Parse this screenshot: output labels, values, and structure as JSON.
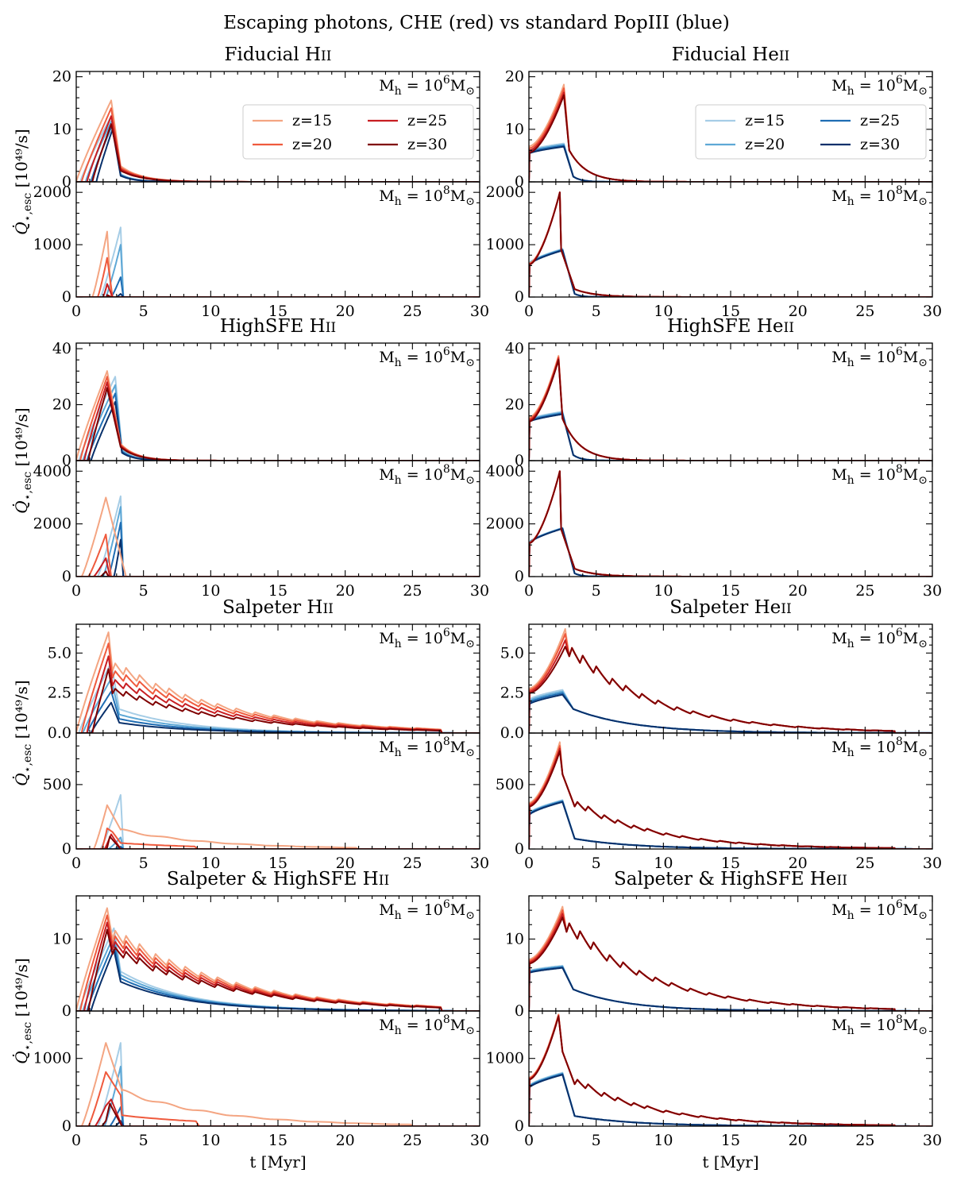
{
  "suptitle": "Escaping photons, CHE (red) vs standard PopIII (blue)",
  "ylabel_unit": "[10⁴⁹/s]",
  "xlabel": "t [Myr]",
  "halo_labels": {
    "low": "6",
    "high": "8"
  },
  "colors": {
    "red": [
      "#f4a582",
      "#ef5a3d",
      "#c81e22",
      "#7f0000"
    ],
    "blue": [
      "#a6cde6",
      "#5ea8d6",
      "#1f6db3",
      "#08306b"
    ]
  },
  "legend": {
    "entries": [
      "z=15",
      "z=20",
      "z=25",
      "z=30"
    ]
  },
  "chart_data": [
    {
      "type": "line",
      "title": "Fiducial HII",
      "title_text": "Fiducial H",
      "ion": "II",
      "xlim": [
        0,
        30
      ],
      "xticks": [
        0,
        5,
        10,
        15,
        20,
        25,
        30
      ],
      "top": {
        "halo": "low",
        "ylim": [
          0,
          21
        ],
        "yticks": [
          0,
          10,
          20
        ],
        "ytick_labels": [
          "0",
          "10",
          "20"
        ],
        "red": {
          "kind": "ramp",
          "start": [
            0.0,
            0.4,
            0.8,
            1.2
          ],
          "peak_t": 2.6,
          "peak": [
            15.5,
            14.0,
            12.5,
            11.0
          ],
          "drop_t": 3.3,
          "drop_to": 3.0,
          "tail_tau": 1.6,
          "end_t": 30
        },
        "blue": {
          "kind": "ramp",
          "start": [
            0.3,
            0.7,
            1.1,
            1.5
          ],
          "peak_t": 2.7,
          "peak": [
            13.0,
            12.0,
            11.0,
            10.0
          ],
          "drop_t": 3.3,
          "drop_to": 1.5,
          "tail_tau": 1.0,
          "end_t": 30
        }
      },
      "bottom": {
        "halo": "high",
        "ylim": [
          0,
          2200
        ],
        "yticks": [
          0,
          1000,
          2000
        ],
        "ytick_labels": [
          "0",
          "1000",
          "2000"
        ],
        "red": {
          "kind": "bump",
          "start": [
            1.2,
            1.6,
            2.0,
            2.3
          ],
          "peak_t": 2.3,
          "peak": [
            1250,
            750,
            250,
            40
          ],
          "end": [
            2.6,
            2.7,
            2.7,
            2.6
          ]
        },
        "blue": {
          "kind": "bump",
          "start": [
            1.8,
            2.2,
            2.6,
            3.0
          ],
          "peak_t": 3.3,
          "peak": [
            1330,
            1000,
            380,
            60
          ],
          "end": [
            3.5,
            3.5,
            3.5,
            3.5
          ]
        }
      }
    },
    {
      "type": "line",
      "title": "Fiducial HeII",
      "title_text": "Fiducial He",
      "ion": "II",
      "xlim": [
        0,
        30
      ],
      "xticks": [
        0,
        5,
        10,
        15,
        20,
        25,
        30
      ],
      "top": {
        "halo": "low",
        "ylim": [
          0,
          21
        ],
        "yticks": [
          0,
          10,
          20
        ],
        "ytick_labels": [
          "0",
          "10",
          "20"
        ],
        "red": {
          "kind": "curve",
          "start_val": [
            6.8,
            6.4,
            6.0,
            5.6
          ],
          "peak_t": 2.6,
          "peak": [
            18.5,
            17.8,
            17.0,
            16.5
          ],
          "drop_t": 3.0,
          "drop_to": 6.0,
          "tail_tau": 1.3,
          "end_t": 30
        },
        "blue": {
          "kind": "plateau",
          "start_val": [
            6.0,
            5.8,
            5.6,
            5.4
          ],
          "peak_t": 2.6,
          "peak": [
            7.3,
            7.1,
            6.9,
            6.7
          ],
          "drop_t": 3.3,
          "drop_to": 1.0,
          "tail_tau": 0.6,
          "end_t": 30
        }
      },
      "bottom": {
        "halo": "high",
        "ylim": [
          0,
          2200
        ],
        "yticks": [
          0,
          1000,
          2000
        ],
        "ytick_labels": [
          "0",
          "1000",
          "2000"
        ],
        "red": {
          "kind": "curve",
          "start_val": [
            650,
            640,
            630,
            620
          ],
          "peak_t": 2.3,
          "peak": [
            2000,
            2000,
            2000,
            2000
          ],
          "drop_t": 2.4,
          "drop_to": 900,
          "knee_t": 3.4,
          "knee_val": 150,
          "tail_tau": 1.5,
          "end_t": 12
        },
        "blue": {
          "kind": "plateau",
          "start_val": [
            650,
            640,
            630,
            620
          ],
          "peak_t": 2.5,
          "peak": [
            920,
            910,
            900,
            890
          ],
          "drop_t": 3.4,
          "drop_to": 60,
          "tail_tau": 0.5,
          "end_t": 6
        }
      }
    },
    {
      "type": "line",
      "title": "HighSFE HII",
      "title_text": "HighSFE H",
      "ion": "II",
      "xlim": [
        0,
        30
      ],
      "xticks": [
        0,
        5,
        10,
        15,
        20,
        25,
        30
      ],
      "top": {
        "halo": "low",
        "ylim": [
          0,
          42
        ],
        "yticks": [
          0,
          20,
          40
        ],
        "ytick_labels": [
          "0",
          "20",
          "40"
        ],
        "red": {
          "kind": "ramp",
          "start": [
            0.0,
            0.3,
            0.6,
            0.9
          ],
          "peak_t": 2.3,
          "peak": [
            32,
            30,
            28,
            26
          ],
          "drop_t": 3.3,
          "drop_to": 6.0,
          "tail_tau": 1.2,
          "end_t": 30
        },
        "blue": {
          "kind": "ramp",
          "start": [
            0.2,
            0.5,
            0.8,
            1.1
          ],
          "peak_t": 2.9,
          "peak": [
            30,
            27,
            24,
            21
          ],
          "drop_t": 3.4,
          "drop_to": 4.0,
          "tail_tau": 0.9,
          "end_t": 30
        }
      },
      "bottom": {
        "halo": "high",
        "ylim": [
          0,
          4400
        ],
        "yticks": [
          0,
          2000,
          4000
        ],
        "ytick_labels": [
          "0",
          "2000",
          "4000"
        ],
        "red": {
          "kind": "bump",
          "start": [
            0.4,
            0.9,
            1.3,
            1.8
          ],
          "peak_t": 2.2,
          "peak": [
            3000,
            1600,
            700,
            200
          ],
          "end": [
            3.7,
            2.6,
            2.5,
            2.4
          ]
        },
        "blue": {
          "kind": "bump",
          "start": [
            1.6,
            2.0,
            2.4,
            2.8
          ],
          "peak_t": 3.3,
          "peak": [
            3050,
            2650,
            2050,
            1400
          ],
          "end": [
            3.5,
            3.5,
            3.5,
            3.5
          ]
        }
      }
    },
    {
      "type": "line",
      "title": "HighSFE HeII",
      "title_text": "HighSFE He",
      "ion": "II",
      "xlim": [
        0,
        30
      ],
      "xticks": [
        0,
        5,
        10,
        15,
        20,
        25,
        30
      ],
      "top": {
        "halo": "low",
        "ylim": [
          0,
          42
        ],
        "yticks": [
          0,
          20,
          40
        ],
        "ytick_labels": [
          "0",
          "20",
          "40"
        ],
        "red": {
          "kind": "curve",
          "start_val": [
            15.5,
            15.0,
            14.5,
            14.0
          ],
          "peak_t": 2.2,
          "peak": [
            37.5,
            37.0,
            36.5,
            36.0
          ],
          "drop_t": 2.5,
          "drop_to": 15.0,
          "tail_tau": 1.3,
          "end_t": 30
        },
        "blue": {
          "kind": "plateau",
          "start_val": [
            14.8,
            14.5,
            14.2,
            13.9
          ],
          "peak_t": 2.5,
          "peak": [
            17.5,
            17.2,
            16.9,
            16.6
          ],
          "drop_t": 3.3,
          "drop_to": 2.0,
          "tail_tau": 0.6,
          "end_t": 30
        }
      },
      "bottom": {
        "halo": "high",
        "ylim": [
          0,
          4400
        ],
        "yticks": [
          0,
          2000,
          4000
        ],
        "ytick_labels": [
          "0",
          "2000",
          "4000"
        ],
        "red": {
          "kind": "curve",
          "start_val": [
            1300,
            1290,
            1280,
            1270
          ],
          "peak_t": 2.3,
          "peak": [
            4000,
            4000,
            4000,
            4000
          ],
          "drop_t": 2.4,
          "drop_to": 1800,
          "knee_t": 3.4,
          "knee_val": 300,
          "tail_tau": 1.5,
          "end_t": 12
        },
        "blue": {
          "kind": "plateau",
          "start_val": [
            1300,
            1290,
            1280,
            1270
          ],
          "peak_t": 2.5,
          "peak": [
            1850,
            1840,
            1830,
            1820
          ],
          "drop_t": 3.4,
          "drop_to": 120,
          "tail_tau": 0.5,
          "end_t": 6
        }
      }
    },
    {
      "type": "line",
      "title": "Salpeter HII",
      "title_text": "Salpeter H",
      "ion": "II",
      "xlim": [
        0,
        30
      ],
      "xticks": [
        0,
        5,
        10,
        15,
        20,
        25,
        30
      ],
      "top": {
        "halo": "low",
        "ylim": [
          0,
          6.8
        ],
        "yticks": [
          0,
          2.5,
          5
        ],
        "ytick_labels": [
          "0.0",
          "2.5",
          "5.0"
        ],
        "red": {
          "kind": "ramp",
          "start": [
            0.0,
            0.4,
            0.8,
            1.2
          ],
          "peak_t": 2.4,
          "peak": [
            6.3,
            5.6,
            4.8,
            4.0
          ],
          "drop_t": 2.7,
          "drop_to": 3.9,
          "tail_tau": 8.5,
          "saw": true,
          "end_t": 27.2
        },
        "blue": {
          "kind": "ramp",
          "start": [
            0.2,
            0.5,
            0.8,
            1.1
          ],
          "peak_t": 2.6,
          "peak": [
            4.4,
            3.4,
            2.6,
            1.9
          ],
          "drop_t": 3.2,
          "drop_to": 1.5,
          "tail_tau": 5.0,
          "end_t": 28
        }
      },
      "bottom": {
        "halo": "high",
        "ylim": [
          0,
          900
        ],
        "yticks": [
          0,
          500
        ],
        "ytick_labels": [
          "0",
          "500"
        ],
        "red": {
          "kind": "bump",
          "start": [
            1.3,
            1.9,
            2.1,
            2.2
          ],
          "peak_t": 2.3,
          "peak": [
            340,
            160,
            40,
            10
          ],
          "end": [
            3.3,
            2.7,
            2.6,
            2.5
          ],
          "tail": {
            "from": 3.3,
            "val": 150,
            "tau": 6.5,
            "end_t": 21
          }
        },
        "blue": {
          "kind": "bump",
          "start": [
            1.8,
            2.4,
            2.8,
            3.0
          ],
          "peak_t": 3.3,
          "peak": [
            420,
            90,
            20,
            5
          ],
          "end": [
            3.5,
            3.5,
            3.5,
            3.5
          ]
        }
      }
    },
    {
      "type": "line",
      "title": "Salpeter HeII",
      "title_text": "Salpeter He",
      "ion": "II",
      "xlim": [
        0,
        30
      ],
      "xticks": [
        0,
        5,
        10,
        15,
        20,
        25,
        30
      ],
      "top": {
        "halo": "low",
        "ylim": [
          0,
          6.8
        ],
        "yticks": [
          0,
          2.5,
          5
        ],
        "ytick_labels": [
          "0.0",
          "2.5",
          "5.0"
        ],
        "red": {
          "kind": "curve",
          "start_val": [
            2.8,
            2.7,
            2.6,
            2.5
          ],
          "peak_t": 2.7,
          "peak": [
            6.5,
            6.2,
            5.8,
            5.4
          ],
          "drop_t": 3.0,
          "drop_to": 4.8,
          "tail_tau": 6.5,
          "saw": true,
          "end_t": 27.2
        },
        "blue": {
          "kind": "plateau",
          "start_val": [
            2.1,
            2.0,
            1.9,
            1.8
          ],
          "peak_t": 2.5,
          "peak": [
            2.7,
            2.6,
            2.5,
            2.4
          ],
          "drop_t": 3.3,
          "drop_to": 1.5,
          "tail_tau": 4.5,
          "end_t": 30
        }
      },
      "bottom": {
        "halo": "high",
        "ylim": [
          0,
          900
        ],
        "yticks": [
          0,
          500
        ],
        "ytick_labels": [
          "0",
          "500"
        ],
        "red": {
          "kind": "curve",
          "start_val": [
            360,
            350,
            340,
            330
          ],
          "peak_t": 2.3,
          "peak": [
            830,
            800,
            780,
            760
          ],
          "drop_t": 2.5,
          "drop_to": 580,
          "knee_t": 3.4,
          "knee_val": 330,
          "tail_tau": 6.0,
          "saw": true,
          "end_t": 27.2
        },
        "blue": {
          "kind": "plateau",
          "start_val": [
            280,
            275,
            270,
            265
          ],
          "peak_t": 2.5,
          "peak": [
            380,
            375,
            370,
            365
          ],
          "drop_t": 3.4,
          "drop_to": 80,
          "tail_tau": 4.5,
          "end_t": 30
        }
      }
    },
    {
      "type": "line",
      "title": "Salpeter & HighSFE HII",
      "title_text": "Salpeter & HighSFE H",
      "ion": "II",
      "xlim": [
        0,
        30
      ],
      "xticks": [
        0,
        5,
        10,
        15,
        20,
        25,
        30
      ],
      "top": {
        "halo": "low",
        "ylim": [
          0,
          16
        ],
        "yticks": [
          0,
          10
        ],
        "ytick_labels": [
          "0",
          "10"
        ],
        "red": {
          "kind": "ramp",
          "start": [
            0.0,
            0.3,
            0.6,
            0.9
          ],
          "peak_t": 2.3,
          "peak": [
            14.3,
            13.3,
            12.3,
            11.3
          ],
          "drop_t": 2.7,
          "drop_to": 10.0,
          "tail_tau": 8.5,
          "saw": true,
          "end_t": 27.2
        },
        "blue": {
          "kind": "ramp",
          "start": [
            0.2,
            0.5,
            0.8,
            1.1
          ],
          "peak_t": 2.8,
          "peak": [
            11.5,
            10.5,
            9.5,
            8.5
          ],
          "drop_t": 3.3,
          "drop_to": 5.5,
          "tail_tau": 5.0,
          "end_t": 28
        }
      },
      "bottom": {
        "halo": "high",
        "ylim": [
          0,
          1700
        ],
        "yticks": [
          0,
          1000
        ],
        "ytick_labels": [
          "0",
          "1000"
        ],
        "red": {
          "kind": "bump",
          "start": [
            0.4,
            0.9,
            1.4,
            1.9
          ],
          "peak_t": 2.2,
          "peak": [
            1230,
            800,
            300,
            80
          ],
          "end": [
            3.5,
            3.3,
            2.6,
            2.5
          ],
          "tail": {
            "from": 3.4,
            "val": 520,
            "tau": 7.0,
            "end_t": 25
          }
        },
        "blue": {
          "kind": "bump",
          "start": [
            1.6,
            2.1,
            2.5,
            2.9
          ],
          "peak_t": 3.3,
          "peak": [
            1230,
            880,
            280,
            80
          ],
          "end": [
            3.5,
            3.5,
            3.5,
            3.5
          ]
        }
      }
    },
    {
      "type": "line",
      "title": "Salpeter & HighSFE HeII",
      "title_text": "Salpeter & HighSFE He",
      "ion": "II",
      "xlim": [
        0,
        30
      ],
      "xticks": [
        0,
        5,
        10,
        15,
        20,
        25,
        30
      ],
      "top": {
        "halo": "low",
        "ylim": [
          0,
          16
        ],
        "yticks": [
          0,
          10
        ],
        "ytick_labels": [
          "0",
          "10"
        ],
        "red": {
          "kind": "curve",
          "start_val": [
            7.2,
            7.0,
            6.8,
            6.6
          ],
          "peak_t": 2.5,
          "peak": [
            14.5,
            14.0,
            13.5,
            13.0
          ],
          "drop_t": 2.8,
          "drop_to": 11.0,
          "tail_tau": 6.5,
          "saw": true,
          "end_t": 27.2
        },
        "blue": {
          "kind": "plateau",
          "start_val": [
            5.6,
            5.5,
            5.4,
            5.3
          ],
          "peak_t": 2.5,
          "peak": [
            6.3,
            6.2,
            6.1,
            6.0
          ],
          "drop_t": 3.3,
          "drop_to": 3.0,
          "tail_tau": 4.0,
          "end_t": 30
        }
      },
      "bottom": {
        "halo": "high",
        "ylim": [
          0,
          1700
        ],
        "yticks": [
          0,
          1000
        ],
        "ytick_labels": [
          "0",
          "1000"
        ],
        "red": {
          "kind": "curve",
          "start_val": [
            720,
            710,
            700,
            690
          ],
          "peak_t": 2.2,
          "peak": [
            1650,
            1640,
            1630,
            1620
          ],
          "drop_t": 2.5,
          "drop_to": 1100,
          "knee_t": 3.4,
          "knee_val": 620,
          "tail_tau": 6.0,
          "saw": true,
          "end_t": 27.2
        },
        "blue": {
          "kind": "plateau",
          "start_val": [
            600,
            590,
            580,
            570
          ],
          "peak_t": 2.5,
          "peak": [
            790,
            780,
            770,
            760
          ],
          "drop_t": 3.4,
          "drop_to": 150,
          "tail_tau": 4.5,
          "end_t": 30
        }
      }
    }
  ]
}
